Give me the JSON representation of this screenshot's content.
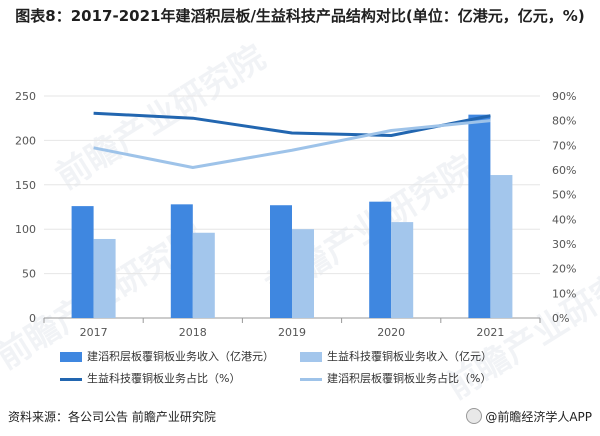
{
  "title": "图表8：2017-2021年建滔积层板/生益科技产品结构对比(单位：亿港元，亿元，%)",
  "source": "资料来源：各公司公告 前瞻产业研究院",
  "brand": "@前瞻经济学人APP",
  "watermark": "前瞻产业研究院",
  "colors": {
    "bar1": "#3f87e0",
    "bar2": "#a3c6ec",
    "line1": "#2266b0",
    "line2": "#9ec3e9",
    "axis": "#999999",
    "grid": "#e6e6e6"
  },
  "chart_data": {
    "type": "bar",
    "categories": [
      "2017",
      "2018",
      "2019",
      "2020",
      "2021"
    ],
    "ylim": [
      0,
      250
    ],
    "yticks": [
      0,
      50,
      100,
      150,
      200,
      250
    ],
    "y2lim": [
      0,
      90
    ],
    "y2ticks": [
      "0%",
      "10%",
      "20%",
      "30%",
      "40%",
      "50%",
      "60%",
      "70%",
      "80%",
      "90%"
    ],
    "series": [
      {
        "name": "建滔积层板覆铜板业务收入（亿港元）",
        "kind": "bar",
        "axis": "left",
        "values": [
          126,
          128,
          127,
          131,
          229
        ]
      },
      {
        "name": "生益科技覆铜板业务收入（亿元）",
        "kind": "bar",
        "axis": "left",
        "values": [
          89,
          96,
          100,
          108,
          161
        ]
      },
      {
        "name": "生益科技覆铜板业务占比（%）",
        "kind": "line",
        "axis": "right",
        "values": [
          83,
          81,
          75,
          74,
          82
        ]
      },
      {
        "name": "建滔积层板覆铜板业务占比（%）",
        "kind": "line",
        "axis": "right",
        "values": [
          69,
          61,
          68,
          76,
          80
        ]
      }
    ],
    "grid": true,
    "legend_position": "bottom"
  }
}
